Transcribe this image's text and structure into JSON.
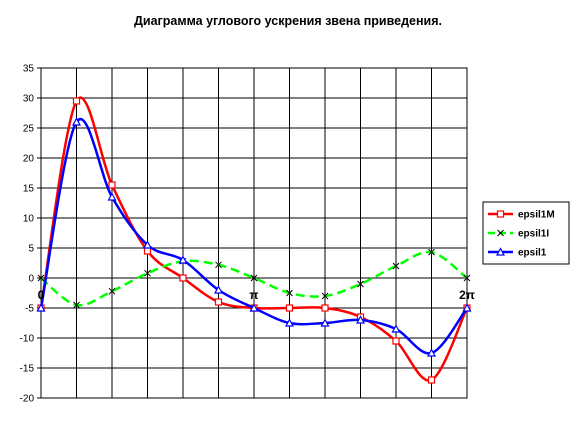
{
  "chart_data": {
    "type": "line",
    "title": "Диаграмма углового ускрения звена приведения.",
    "xlabel": "",
    "ylabel": "",
    "ylim": [
      -20,
      35
    ],
    "yticks": [
      -20,
      -15,
      -10,
      -5,
      0,
      5,
      10,
      15,
      20,
      25,
      30,
      35
    ],
    "xlim": [
      0,
      12
    ],
    "x_labels": [
      {
        "x": 0,
        "text": "0"
      },
      {
        "x": 6,
        "text": "π"
      },
      {
        "x": 12,
        "text": "2π"
      }
    ],
    "grid": true,
    "legend_position": "right",
    "x": [
      0,
      1,
      2,
      3,
      4,
      5,
      6,
      7,
      8,
      9,
      10,
      11,
      12
    ],
    "series": [
      {
        "name": "epsil1M",
        "color": "#ff0000",
        "marker": "square",
        "values": [
          -5,
          29.5,
          15.5,
          4.5,
          0,
          -4,
          -5,
          -5,
          -5,
          -6.5,
          -10.5,
          -17,
          -5
        ]
      },
      {
        "name": "epsil1I",
        "color": "#00ff00",
        "marker": "x",
        "values": [
          0,
          -4.5,
          -2.2,
          0.8,
          2.8,
          2.2,
          0,
          -2.5,
          -3,
          -1,
          2,
          4.3,
          0
        ]
      },
      {
        "name": "epsil1",
        "color": "#0000ff",
        "marker": "triangle",
        "values": [
          -5,
          26,
          13.5,
          5.5,
          3,
          -2,
          -5,
          -7.5,
          -7.5,
          -7,
          -8.5,
          -12.5,
          -5
        ]
      }
    ]
  }
}
